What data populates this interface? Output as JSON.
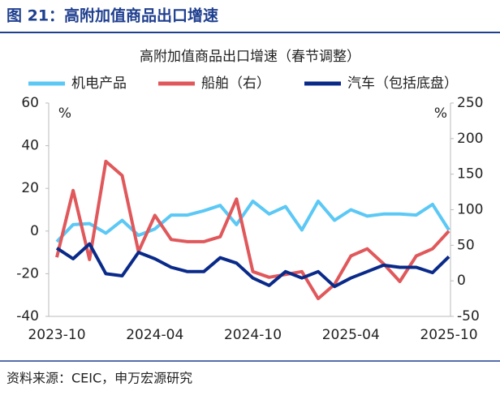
{
  "header": {
    "title": "图 21：高附加值商品出口增速"
  },
  "source": "资料来源：CEIC，申万宏源研究",
  "chart_data": {
    "type": "line",
    "title": "高附加值商品出口增速（春节调整）",
    "ylabel": "%",
    "y2label": "%",
    "categories": [
      "2023-10",
      null,
      null,
      null,
      null,
      null,
      "2024-04",
      null,
      null,
      null,
      null,
      null,
      "2024-10",
      null,
      null,
      null,
      null,
      null,
      "2025-04",
      null,
      null,
      null,
      null,
      null,
      "2025-10"
    ],
    "ylim": [
      -40,
      60
    ],
    "yticks": [
      -40,
      -20,
      0,
      20,
      40,
      60
    ],
    "y2lim": [
      -50,
      250
    ],
    "y2ticks": [
      -50,
      0,
      50,
      100,
      150,
      200,
      250
    ],
    "legend": "top",
    "series": [
      {
        "name": "机电产品",
        "color": "#5bc8f5",
        "values": [
          -5,
          3,
          3.5,
          -1,
          5,
          -2,
          1,
          7.5,
          7.5,
          9.5,
          12,
          3,
          14,
          8,
          11.5,
          0.5,
          14,
          5,
          10,
          7,
          8,
          8,
          7.5,
          12.5,
          0.5
        ]
      },
      {
        "name": "船舶（右）",
        "color": "#e0585b",
        "axis": "y2",
        "values": [
          33,
          127,
          30,
          168,
          148,
          41,
          92,
          58,
          55,
          55,
          62,
          115,
          13,
          5,
          9,
          13,
          -25,
          -5,
          35,
          45,
          24,
          -1,
          35,
          45,
          70
        ]
      },
      {
        "name": "汽车（包括底盘）",
        "color": "#0a2a8a",
        "values": [
          -8,
          -13,
          -6,
          -20,
          -21,
          -10,
          -13,
          -17,
          -19,
          -19,
          -12.5,
          -15,
          -22,
          -25.5,
          -19,
          -22,
          -19,
          -26,
          -22,
          -19,
          -16,
          -17,
          -17,
          -19.5,
          -12
        ]
      }
    ]
  }
}
